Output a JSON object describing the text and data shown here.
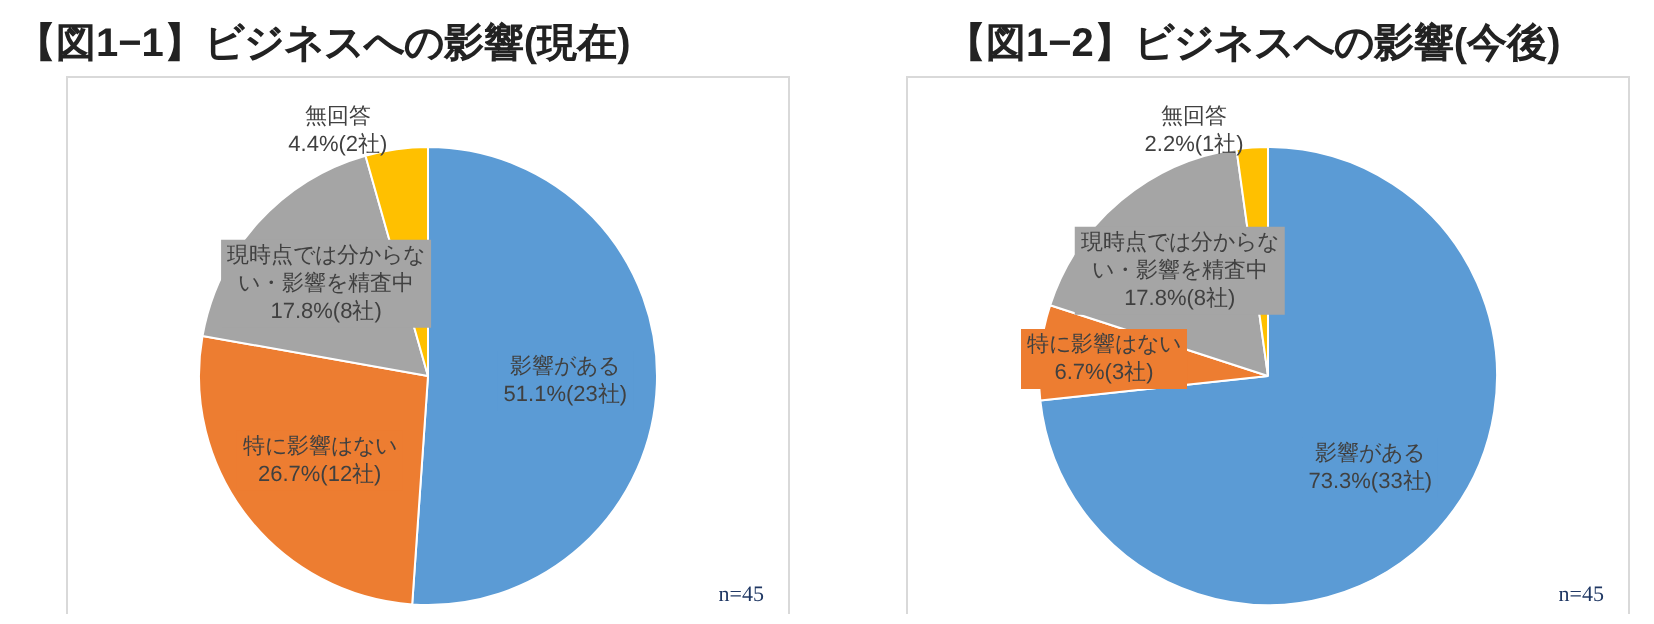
{
  "chart_data": [
    {
      "type": "pie",
      "title": "【図1−1】ビジネスへの影響(現在)",
      "categories": [
        "影響がある",
        "特に影響はない",
        "現時点では分からない・影響を精査中",
        "無回答"
      ],
      "values": [
        51.1,
        26.7,
        17.8,
        4.4
      ],
      "value_labels": [
        "51.1%(23社)",
        "26.7%(12社)",
        "17.8%(8社)",
        "4.4%(2社)"
      ],
      "colors": [
        "#5b9bd5",
        "#ed7d31",
        "#a5a5a5",
        "#ffc000"
      ],
      "legend": false,
      "annotations": [
        "n=45"
      ]
    },
    {
      "type": "pie",
      "title": "【図1−2】ビジネスへの影響(今後)",
      "categories": [
        "影響がある",
        "特に影響はない",
        "現時点では分からない・影響を精査中",
        "無回答"
      ],
      "values": [
        73.3,
        6.7,
        17.8,
        2.2
      ],
      "value_labels": [
        "73.3%(33社)",
        "6.7%(3社)",
        "17.8%(8社)",
        "2.2%(1社)"
      ],
      "colors": [
        "#5b9bd5",
        "#ed7d31",
        "#a5a5a5",
        "#ffc000"
      ],
      "legend": false,
      "annotations": [
        "n=45"
      ]
    }
  ]
}
